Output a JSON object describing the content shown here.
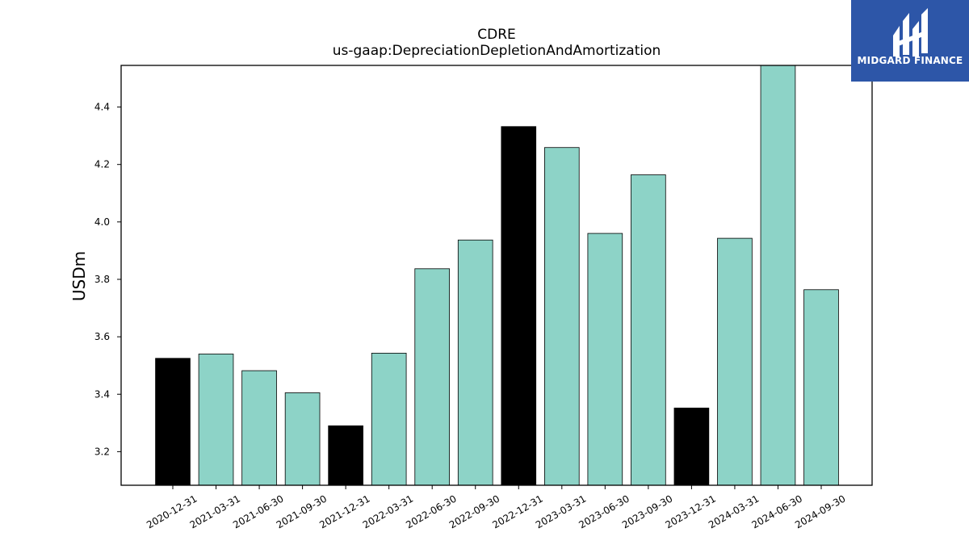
{
  "logo": {
    "text": "MIDGARD FINANCE",
    "icon": "midgard-logo-icon",
    "background": "#2d56a8"
  },
  "chart_data": {
    "type": "bar",
    "title": "CDRE",
    "subtitle": "us-gaap:DepreciationDepletionAndAmortization",
    "xlabel": "",
    "ylabel": "USDm",
    "categories": [
      "2020-12-31",
      "2021-03-31",
      "2021-06-30",
      "2021-09-30",
      "2021-12-31",
      "2022-03-31",
      "2022-06-30",
      "2022-09-30",
      "2022-12-31",
      "2023-03-31",
      "2023-06-30",
      "2023-09-30",
      "2023-12-31",
      "2024-03-31",
      "2024-06-30",
      "2024-09-30"
    ],
    "values": [
      3.525,
      3.54,
      3.482,
      3.405,
      3.29,
      3.543,
      3.837,
      3.937,
      4.332,
      4.259,
      3.96,
      4.164,
      3.352,
      3.943,
      4.545,
      3.764
    ],
    "bar_colors": [
      "#000000",
      "#8dd3c7",
      "#8dd3c7",
      "#8dd3c7",
      "#000000",
      "#8dd3c7",
      "#8dd3c7",
      "#8dd3c7",
      "#000000",
      "#8dd3c7",
      "#8dd3c7",
      "#8dd3c7",
      "#000000",
      "#8dd3c7",
      "#8dd3c7",
      "#8dd3c7"
    ],
    "yticks": [
      3.2,
      3.4,
      3.6,
      3.8,
      4.0,
      4.2,
      4.4
    ],
    "ytick_labels": [
      "3.2",
      "3.4",
      "3.6",
      "3.8",
      "4.0",
      "4.2",
      "4.4"
    ],
    "ylim": [
      3.083,
      4.545
    ],
    "grid": false,
    "legend": "none"
  }
}
